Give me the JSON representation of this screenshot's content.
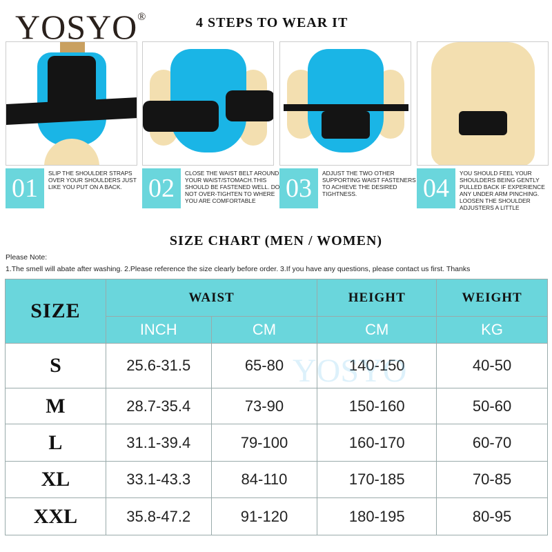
{
  "brand": {
    "name": "YOSYO",
    "mark": "®"
  },
  "steps_title": "4 STEPS TO WEAR IT",
  "steps": [
    {
      "num": "01",
      "text": "SLIP THE SHOULDER STRAPS OVER YOUR SHOULDERS JUST LIKE YOU PUT ON A BACK."
    },
    {
      "num": "02",
      "text": "CLOSE THE WAIST BELT AROUND YOUR WAIST/STOMACH.THIS SHOULD BE FASTENED WELL. DO NOT OVER-TIGHTEN TO WHERE YOU ARE COMFORTABLE"
    },
    {
      "num": "03",
      "text": "ADJUST THE TWO OTHER SUPPORTING WAIST FASTENERS TO ACHIEVE THE DESIRED TIGHTNESS."
    },
    {
      "num": "04",
      "text": "YOU SHOULD FEEL YOUR SHOULDERS BEING GENTLY PULLED BACK IF EXPERIENCE ANY UNDER ARM PINCHING. LOOSEN THE SHOULDER ADJUSTERS A LITTLE"
    }
  ],
  "size_chart": {
    "title": "SIZE CHART (MEN / WOMEN)",
    "note_label": "Please Note:",
    "note": "1.The smell will abate after washing.  2.Please reference the size clearly before order.  3.If you have any questions, please contact us first. Thanks",
    "headers": {
      "size": "SIZE",
      "waist": "WAIST",
      "height": "HEIGHT",
      "weight": "WEIGHT"
    },
    "units": [
      "INCH",
      "CM",
      "CM",
      "KG"
    ],
    "rows": [
      [
        "S",
        "25.6-31.5",
        "65-80",
        "140-150",
        "40-50"
      ],
      [
        "M",
        "28.7-35.4",
        "73-90",
        "150-160",
        "50-60"
      ],
      [
        "L",
        "31.1-39.4",
        "79-100",
        "160-170",
        "60-70"
      ],
      [
        "XL",
        "33.1-43.3",
        "84-110",
        "170-185",
        "70-85"
      ],
      [
        "XXL",
        "35.8-47.2",
        "91-120",
        "180-195",
        "80-95"
      ]
    ],
    "watermark": "YOSYO"
  },
  "colors": {
    "accent": "#6ad6dc",
    "suit": "#1ab5e6"
  }
}
